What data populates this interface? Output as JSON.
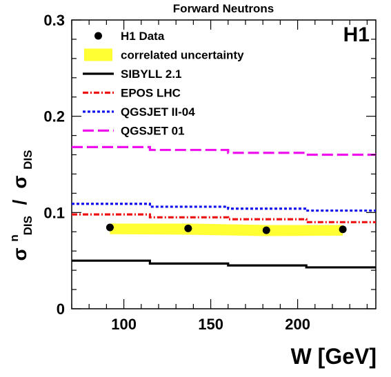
{
  "chart_data": {
    "type": "line",
    "title": "Forward Neutrons",
    "experiment_label": "H1",
    "xlabel": "W [GeV]",
    "ylabel": {
      "numerator": {
        "symbol": "σ",
        "superscript": "n",
        "subscript": "DIS"
      },
      "separator": "/",
      "denominator": {
        "symbol": "σ",
        "subscript": "DIS"
      }
    },
    "xlim": [
      70,
      245
    ],
    "ylim": [
      0,
      0.3
    ],
    "x_ticks": [
      {
        "value": 100,
        "label": "100"
      },
      {
        "value": 150,
        "label": "150"
      },
      {
        "value": 200,
        "label": "200"
      }
    ],
    "y_ticks": [
      {
        "value": 0,
        "label": "0"
      },
      {
        "value": 0.1,
        "label": "0.1"
      },
      {
        "value": 0.2,
        "label": "0.2"
      },
      {
        "value": 0.3,
        "label": "0.3"
      }
    ],
    "grid": false,
    "legend": {
      "position": "top-left",
      "entries": [
        {
          "key": "data",
          "label": "H1 Data"
        },
        {
          "key": "band",
          "label": "correlated uncertainty"
        },
        {
          "key": "sibyll",
          "label": "SIBYLL 2.1"
        },
        {
          "key": "epos",
          "label": "EPOS LHC"
        },
        {
          "key": "qgsjet2",
          "label": "QGSJET II-04"
        },
        {
          "key": "qgsjet01",
          "label": "QGSJET 01"
        }
      ]
    },
    "data_points": {
      "x": [
        92,
        137,
        182,
        226
      ],
      "y": [
        0.0845,
        0.0835,
        0.0815,
        0.0825
      ],
      "color": "#000000"
    },
    "uncertainty_band": {
      "x": [
        92,
        137,
        182,
        226
      ],
      "y_low": [
        0.0775,
        0.077,
        0.0755,
        0.076
      ],
      "y_high": [
        0.0885,
        0.0885,
        0.087,
        0.087
      ],
      "color": "#ffff33"
    },
    "bin_edges": [
      70,
      115,
      160,
      205,
      245
    ],
    "series": [
      {
        "key": "sibyll",
        "values": [
          0.05,
          0.047,
          0.045,
          0.043
        ],
        "color": "#000000",
        "style": "solid"
      },
      {
        "key": "epos",
        "values": [
          0.098,
          0.095,
          0.093,
          0.09
        ],
        "color": "#ee1111",
        "style": "dash-dot"
      },
      {
        "key": "qgsjet2",
        "values": [
          0.109,
          0.106,
          0.104,
          0.102
        ],
        "color": "#1111ee",
        "style": "dotted"
      },
      {
        "key": "qgsjet01",
        "values": [
          0.168,
          0.165,
          0.162,
          0.16
        ],
        "color": "#ee11ee",
        "style": "dashed"
      }
    ]
  }
}
